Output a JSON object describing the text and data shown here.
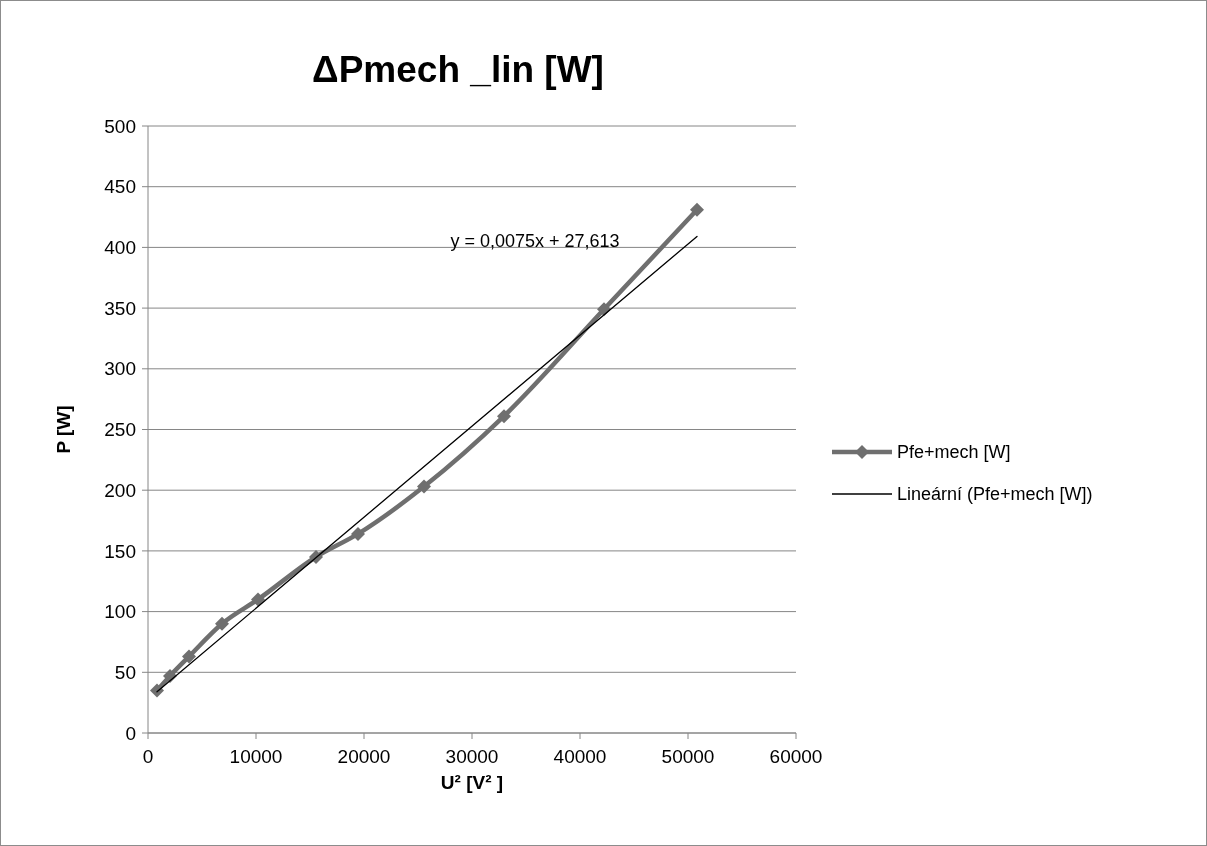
{
  "chart_data": {
    "type": "line",
    "title": "ΔPmech _lin [W]",
    "xlabel": "U² [V² ]",
    "ylabel": "P [W]",
    "xlim": [
      0,
      60000
    ],
    "xticks": [
      0,
      10000,
      20000,
      30000,
      40000,
      50000,
      60000
    ],
    "ylim": [
      0,
      500
    ],
    "yticks": [
      0,
      50,
      100,
      150,
      200,
      250,
      300,
      350,
      400,
      450,
      500
    ],
    "grid": "y",
    "legend": "right",
    "marker": "diamond",
    "line_style": "solid",
    "series": [
      {
        "name": "Pfe+mech [W]",
        "color": "#6f6f6f",
        "x": [
          833,
          2037,
          3796,
          6852,
          10185,
          15556,
          19444,
          25555,
          32963,
          42222,
          50833
        ],
        "values": [
          35,
          47,
          63,
          90,
          110,
          145,
          164,
          203,
          261,
          349,
          431
        ]
      },
      {
        "name": "Lineární (Pfe+mech [W])",
        "type": "line",
        "color": "#000000",
        "marker": "none",
        "x": [
          833,
          50833
        ],
        "values": [
          34,
          409
        ]
      }
    ],
    "annotations": [
      "y = 0,0075x + 27,613"
    ]
  }
}
